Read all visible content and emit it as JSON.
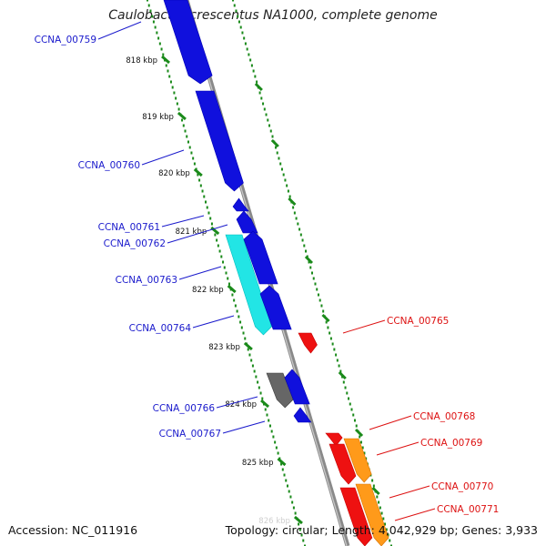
{
  "title": "Caulobacter crescentus NA1000, complete genome",
  "footer": {
    "accession": "Accession: NC_011916",
    "stats": "Topology: circular; Length: 4,042,929 bp; Genes: 3,933"
  },
  "colors": {
    "forward_cds": "#1010dd",
    "highlight_cds": "#22e5e5",
    "other_cds": "#666666",
    "reverse_cds": "#ee1111",
    "reverse_alt_cds": "#ff9a1a",
    "backbone": "#8a8a8a",
    "tick_green": "#1a8a1a",
    "left_label": "#1a1acc",
    "right_label": "#dd1111"
  },
  "ticks": [
    "818 kbp",
    "819 kbp",
    "820 kbp",
    "821 kbp",
    "822 kbp",
    "823 kbp",
    "824 kbp",
    "825 kbp",
    "826 kbp"
  ],
  "left_genes": [
    {
      "name": "CCNA_00759",
      "color_key": "forward_cds"
    },
    {
      "name": "CCNA_00760",
      "color_key": "forward_cds"
    },
    {
      "name": "CCNA_00761",
      "color_key": "forward_cds"
    },
    {
      "name": "CCNA_00762",
      "color_key": "forward_cds"
    },
    {
      "name": "CCNA_00763",
      "color_key": "highlight_cds"
    },
    {
      "name": "CCNA_00764",
      "color_key": "forward_cds"
    },
    {
      "name": "CCNA_00766",
      "color_key": "other_cds"
    },
    {
      "name": "CCNA_00767",
      "color_key": "forward_cds"
    }
  ],
  "right_genes": [
    {
      "name": "CCNA_00765",
      "color_key": "reverse_cds"
    },
    {
      "name": "CCNA_00768",
      "color_key": "reverse_cds"
    },
    {
      "name": "CCNA_00769",
      "color_key": "reverse_cds"
    },
    {
      "name": "CCNA_00770",
      "color_key": "reverse_alt_cds"
    },
    {
      "name": "CCNA_00771",
      "color_key": "reverse_alt_cds"
    }
  ]
}
